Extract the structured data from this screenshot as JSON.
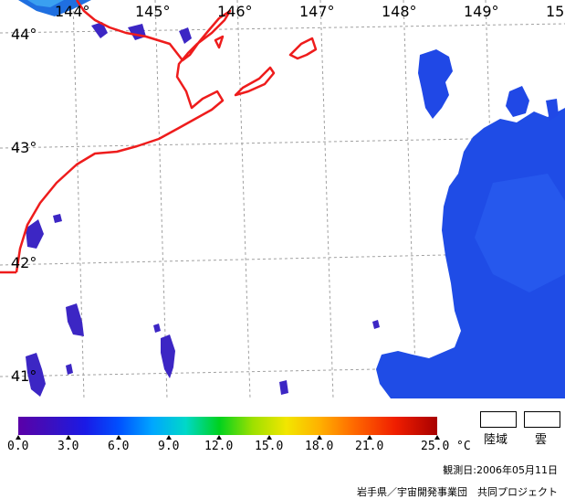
{
  "map": {
    "lon_labels": [
      "144°",
      "145°",
      "146°",
      "147°",
      "148°",
      "149°",
      "15"
    ],
    "lat_labels": [
      "44°",
      "43°",
      "42°",
      "41°"
    ],
    "colors": {
      "coast": "#ee1c1c",
      "grid": "#a0a0a0",
      "warm_sea": "#1f4ce6",
      "cold_sea": "#3c26c4",
      "deep": "#1a38d2"
    }
  },
  "legend": {
    "ticks": [
      "0.0",
      "3.0",
      "6.0",
      "9.0",
      "12.0",
      "15.0",
      "18.0",
      "21.0",
      "25.0"
    ],
    "unit": "°C",
    "land_label": "陸域",
    "cloud_label": "雲"
  },
  "footer": {
    "observation_date": "観測日:2006年05月11日",
    "credit": "岩手県／宇宙開発事業団　共同プロジェクト"
  }
}
